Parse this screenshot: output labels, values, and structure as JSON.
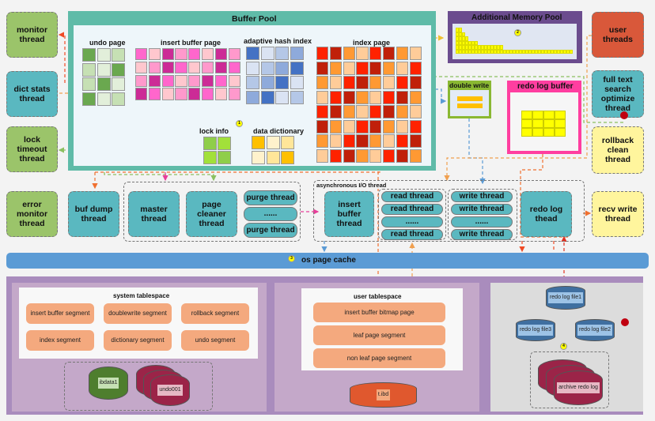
{
  "threads": {
    "monitor": "monitor thread",
    "dict_stats": "dict stats thread",
    "lock_timeout": "lock timeout thread",
    "error_monitor": "error monitor thread",
    "user": "user threads",
    "full_text": "full text search optimize thread",
    "rollback_clean": "rollback clean thread",
    "recv_write": "recv write thread",
    "buf_dump": "buf dump thread",
    "master": "master thread",
    "page_cleaner": "page cleaner thread",
    "purge1": "purge thread",
    "purge_more": "......",
    "purge2": "purge thread",
    "async_label": "asynchronous I/O thread",
    "insert_buffer": "insert buffer thread",
    "read": [
      "read thread",
      "read thread",
      "......",
      "read thread"
    ],
    "write": [
      "write thread",
      "write thread",
      "......",
      "write thread"
    ],
    "redo_log": "redo log thead"
  },
  "buffer_pool": {
    "title": "Buffer Pool",
    "undo_page": {
      "label": "undo page",
      "cols": 3,
      "palette": [
        "#6aa84f",
        "#c6e0b4",
        "#e2efda"
      ],
      "pattern": [
        "021",
        "120",
        "102",
        "021"
      ]
    },
    "insert_buffer_page": {
      "label": "insert buffer page",
      "cols": 8,
      "palette": [
        "#ff66cc",
        "#ffc7ce",
        "#cc2b96",
        "#ff99cc"
      ],
      "pattern": [
        "01230123",
        "13201320",
        "32013201",
        "20132013"
      ]
    },
    "adaptive_hash_index": {
      "label": "adaptive hash index",
      "cols": 4,
      "palette": [
        "#4472c4",
        "#dae3f3",
        "#b4c7e7",
        "#8eaadb"
      ],
      "pattern": [
        "0123",
        "1230",
        "2301",
        "3012"
      ]
    },
    "index_page": {
      "label": "index page",
      "cols": 8,
      "palette": [
        "#ff2200",
        "#c0200a",
        "#ff9933",
        "#ffcc99"
      ],
      "pattern": [
        "01230123",
        "12301230",
        "23012301",
        "30123012",
        "01230123",
        "12301230",
        "23012301",
        "30123012"
      ]
    },
    "lock_info": {
      "label": "lock info",
      "badge": "1",
      "cols": 2,
      "palette": [
        "#8fce4a",
        "#a2e03a"
      ],
      "pattern": [
        "01",
        "10"
      ]
    },
    "data_dictionary": {
      "label": "data dictionary",
      "cols": 3,
      "palette": [
        "#ffc000",
        "#fff2cc",
        "#ffe699"
      ],
      "pattern": [
        "012",
        "120"
      ]
    }
  },
  "additional_memory_pool": {
    "title": "Additional Memory Pool",
    "badge": "2",
    "color": "#6b4c8e"
  },
  "double_write": {
    "title": "double write",
    "color": "#8ab832"
  },
  "redo_log_buffer": {
    "title": "redo log buffer",
    "color": "#ff3ea0"
  },
  "os_page_cache": {
    "label": "os page cache",
    "badge": "3",
    "color": "#5b9bd5"
  },
  "system_tablespace": {
    "title": "system tablespace",
    "segments": [
      "insert buffer segment",
      "doublewrite segment",
      "rollback segment",
      "index segment",
      "dictionary segment",
      "undo segment"
    ],
    "files": [
      "ibdata1",
      "undo001"
    ]
  },
  "user_tablespace": {
    "title": "user tablespace",
    "segments": [
      "insert buffer bitmap page",
      "leaf page segment",
      "non leaf page segment"
    ],
    "file": "t.ibd"
  },
  "redo_logs": {
    "files": [
      "redo log file1",
      "redo log file2",
      "redo log file3"
    ],
    "badge": "4",
    "archive": "archive redo log"
  }
}
